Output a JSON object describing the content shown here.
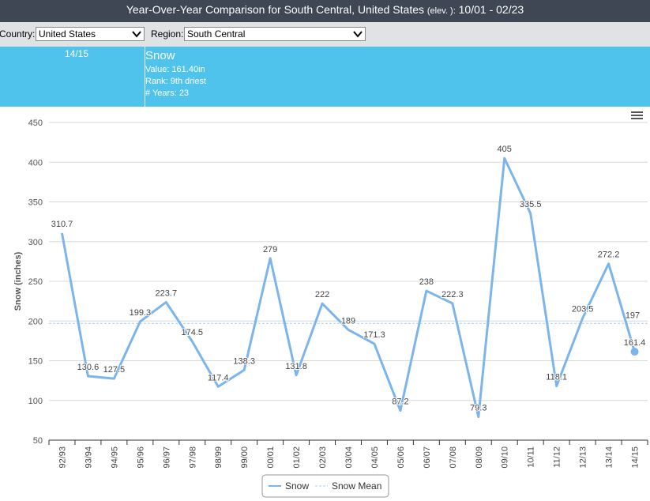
{
  "header": {
    "title_main": "Year-Over-Year Comparison for South Central, United States",
    "title_elev": "(elev. ):",
    "title_range": "10/01 - 02/23"
  },
  "filters": {
    "country_label": "Country:",
    "country_value": "United States",
    "region_label": "Region:",
    "region_value": "South Central"
  },
  "info": {
    "season": "14/15",
    "title": "Snow",
    "value_line": "Value: 161.40in",
    "rank_line": "Rank: 9th driest",
    "years_line": "# Years: 23"
  },
  "colors": {
    "header_bg": "#3f4654",
    "info_bg": "#4fc3ec",
    "series": "#7cb5ec",
    "mean": "#a8cfe9"
  },
  "chart_data": {
    "type": "line",
    "title": "",
    "xlabel": "",
    "ylabel": "Snow (inches)",
    "ylim": [
      50,
      450
    ],
    "yticks": [
      50,
      100,
      150,
      200,
      250,
      300,
      350,
      400,
      450
    ],
    "grid": true,
    "legend_position": "bottom-center",
    "categories": [
      "92/93",
      "93/94",
      "94/95",
      "95/96",
      "96/97",
      "97/98",
      "98/99",
      "99/00",
      "00/01",
      "01/02",
      "02/03",
      "03/04",
      "04/05",
      "05/06",
      "06/07",
      "07/08",
      "08/09",
      "09/10",
      "10/11",
      "11/12",
      "12/13",
      "13/14",
      "14/15"
    ],
    "series": [
      {
        "name": "Snow",
        "values": [
          310.7,
          130.6,
          127.5,
          199.3,
          223.7,
          174.5,
          117.4,
          138.3,
          279,
          131.8,
          222,
          189,
          171.3,
          87.2,
          238,
          222.3,
          79.3,
          405,
          335.5,
          118.1,
          203.5,
          272.2,
          161.4
        ],
        "labels": [
          "310.7",
          "130.6",
          "127.5",
          "199.3",
          "223.7",
          "174.5",
          "117.4",
          "138.3",
          "279",
          "131.8",
          "222",
          "189",
          "171.3",
          "87.2",
          "238",
          "222.3",
          "79.3",
          "405",
          "335.5",
          "118.1",
          "203.5",
          "272.2",
          "161.4"
        ],
        "highlight_index": 22
      },
      {
        "name": "Snow Mean",
        "value": 197,
        "label": "197",
        "style": "dashed"
      }
    ]
  }
}
